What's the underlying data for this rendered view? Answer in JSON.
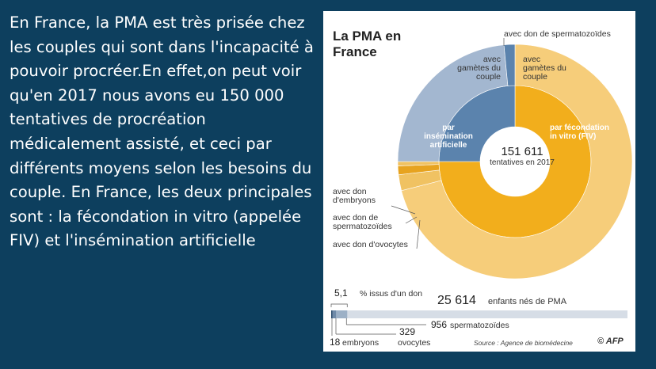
{
  "paragraph": "En France, la PMA est très prisée chez les couples qui sont dans l'incapacité à pouvoir procréer.En effet,on peut voir qu'en 2017 nous avons eu 150 000 tentatives de procréation médicalement assisté, et ceci par différents moyens selon les besoins du couple. En France, les deux principales sont : la fécondation in vitro (appelée FIV) et l'insémination artificielle",
  "chart_data": [
    {
      "type": "pie",
      "title": "La PMA en France",
      "center_value": "151 611",
      "center_label": "tentatives en 2017",
      "inner_ring": [
        {
          "name": "par insémination artificielle",
          "share": 0.25
        },
        {
          "name": "par fécondation in vitro (FIV)",
          "share": 0.75
        }
      ],
      "outer_ring": [
        {
          "name": "avec gamètes du couple",
          "parent": "par insémination artificielle",
          "share": 0.235
        },
        {
          "name": "avec don de spermatozoïdes",
          "parent": "par insémination artificielle",
          "share": 0.015
        },
        {
          "name": "avec gamètes du couple",
          "parent": "par fécondation in vitro (FIV)",
          "share": 0.71
        },
        {
          "name": "avec don d'ovocytes",
          "parent": "par fécondation in vitro (FIV)",
          "share": 0.022
        },
        {
          "name": "avec don de spermatozoïdes",
          "parent": "par fécondation in vitro (FIV)",
          "share": 0.012
        },
        {
          "name": "avec don d'embryons",
          "parent": "par fécondation in vitro (FIV)",
          "share": 0.006
        }
      ],
      "colors": {
        "fiv_inner": "#f2ae1c",
        "fiv_outer": "#f6cd7a",
        "ia_inner": "#5b83ad",
        "ia_outer": "#a3b7d0",
        "don_dark": "#e7a31f",
        "don_light": "#f0c262"
      }
    },
    {
      "type": "bar",
      "title": "25 614 enfants nés de PMA",
      "total_value": "25 614",
      "total_label": "enfants nés de PMA",
      "percent_text": "5,1",
      "percent_label": "% issus d'un don",
      "total": 25614,
      "segments": [
        {
          "name": "embryons",
          "value": 18
        },
        {
          "name": "ovocytes",
          "value": 329
        },
        {
          "name": "spermatozoïdes",
          "value": 956
        }
      ],
      "value_labels": [
        "18",
        "329",
        "956"
      ],
      "source": "Source : Agence de biomédecine",
      "credit": "© AFP"
    }
  ],
  "labels": {
    "ia_center": "par insémination artificielle",
    "fiv_center": "par fécondation in vitro (FIV)",
    "ia_outer": "avec gamètes du couple",
    "fiv_outer": "avec gamètes du couple",
    "don_sperm_top": "avec don de spermatozoïdes",
    "don_embryons": "avec don d'embryons",
    "don_sperm": "avec don de spermatozoïdes",
    "don_ovocytes": "avec don d'ovocytes"
  }
}
